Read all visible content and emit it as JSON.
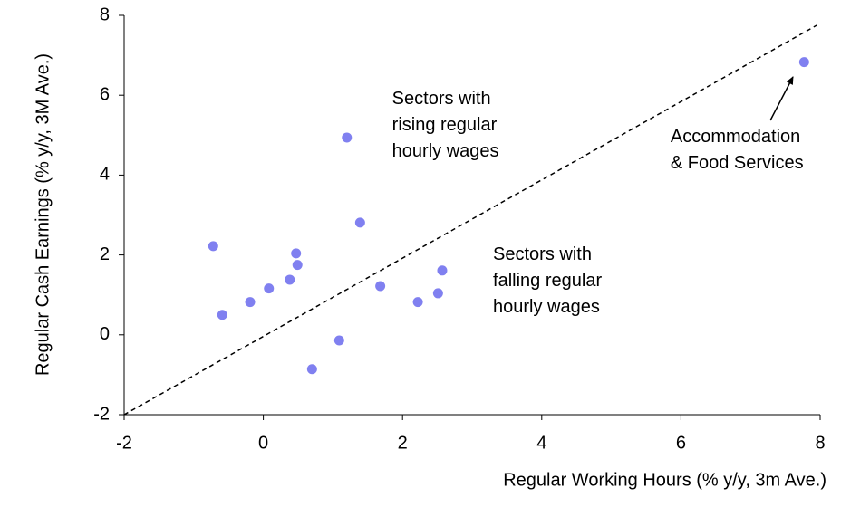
{
  "chart_data": {
    "type": "scatter",
    "x_label": "Regular Working Hours (% y/y, 3m Ave.)",
    "y_label": "Regular Cash Earnings (% y/y, 3M Ave.)",
    "xlim": [
      -2,
      8
    ],
    "xticks": [
      -2,
      0,
      2,
      4,
      6,
      8
    ],
    "ylim": [
      -2,
      8
    ],
    "yticks": [
      -2,
      0,
      2,
      4,
      6,
      8
    ],
    "grid": false,
    "color": "#8080f0",
    "x": [
      -0.72,
      -0.59,
      -0.19,
      0.08,
      0.38,
      0.47,
      0.49,
      0.7,
      1.09,
      1.2,
      1.39,
      1.68,
      2.22,
      2.51,
      2.57,
      7.77
    ],
    "values": [
      2.22,
      0.5,
      0.82,
      1.16,
      1.38,
      2.04,
      1.75,
      -0.86,
      -0.14,
      4.94,
      2.81,
      1.22,
      0.82,
      1.04,
      1.61,
      6.83
    ],
    "reference_line": {
      "x": [
        -2,
        7.95
      ],
      "y": [
        -2,
        7.75
      ]
    },
    "annotations": [
      {
        "lines": [
          "Sectors with",
          "rising regular",
          "hourly wages"
        ],
        "x": 1.85,
        "y": 5.9
      },
      {
        "lines": [
          "Sectors with",
          "falling regular",
          "hourly wages"
        ],
        "x": 3.3,
        "y": 2.0
      },
      {
        "lines": [
          "Accommodation",
          "& Food Services"
        ],
        "x": 5.85,
        "y": 4.95
      }
    ]
  }
}
